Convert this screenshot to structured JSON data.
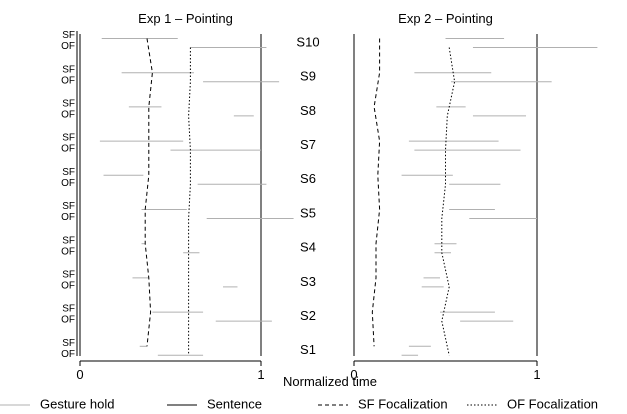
{
  "chart_data": {
    "type": "line",
    "xlabel": "Normalized time",
    "xlim": [
      0,
      1
    ],
    "xticks": [
      0,
      1
    ],
    "row_labels": [
      "SF",
      "OF"
    ],
    "subjects": [
      "S10",
      "S9",
      "S8",
      "S7",
      "S6",
      "S5",
      "S4",
      "S3",
      "S2",
      "S1"
    ],
    "legend": [
      {
        "name": "Gesture hold",
        "style": "solid",
        "color": "#b0b0b0"
      },
      {
        "name": "Sentence",
        "style": "solid",
        "color": "#000000"
      },
      {
        "name": "SF Focalization",
        "style": "dashed",
        "color": "#000000"
      },
      {
        "name": "OF Focalization",
        "style": "dotted",
        "color": "#000000"
      }
    ],
    "panels": [
      {
        "title": "Exp 1 – Pointing",
        "sentence": [
          0,
          1
        ],
        "gesture_hold": {
          "SF": [
            [
              0.12,
              0.54
            ],
            [
              0.23,
              0.63
            ],
            [
              0.27,
              0.45
            ],
            [
              0.11,
              0.57
            ],
            [
              0.13,
              0.35
            ],
            [
              0.34,
              0.59
            ],
            [
              0.34,
              0.36
            ],
            [
              0.29,
              0.38
            ],
            [
              0.4,
              0.68
            ],
            [
              0.33,
              0.37
            ]
          ],
          "OF": [
            [
              0.61,
              1.03
            ],
            [
              0.68,
              1.1
            ],
            [
              0.85,
              0.96
            ],
            [
              0.5,
              1.0
            ],
            [
              0.65,
              1.03
            ],
            [
              0.7,
              1.18
            ],
            [
              0.57,
              0.66
            ],
            [
              0.79,
              0.87
            ],
            [
              0.75,
              1.06
            ],
            [
              0.43,
              0.68
            ]
          ]
        },
        "sf_focalization": [
          0.37,
          0.4,
          0.38,
          0.38,
          0.38,
          0.36,
          0.36,
          0.38,
          0.39,
          0.37
        ],
        "of_focalization": [
          0.61,
          0.61,
          0.6,
          0.61,
          0.61,
          0.6,
          0.6,
          0.6,
          0.6,
          0.6
        ]
      },
      {
        "title": "Exp 2 – Pointing",
        "sentence": [
          0,
          1
        ],
        "gesture_hold": {
          "SF": [
            [
              0.5,
              0.82
            ],
            [
              0.33,
              0.75
            ],
            [
              0.45,
              0.61
            ],
            [
              0.3,
              0.79
            ],
            [
              0.26,
              0.54
            ],
            [
              0.52,
              0.77
            ],
            [
              0.44,
              0.56
            ],
            [
              0.38,
              0.47
            ],
            [
              0.47,
              0.77
            ],
            [
              0.3,
              0.42
            ]
          ],
          "OF": [
            [
              0.65,
              1.33
            ],
            [
              0.53,
              1.08
            ],
            [
              0.65,
              0.94
            ],
            [
              0.33,
              0.91
            ],
            [
              0.52,
              0.8
            ],
            [
              0.63,
              1.0
            ],
            [
              0.44,
              0.53
            ],
            [
              0.37,
              0.49
            ],
            [
              0.58,
              0.87
            ],
            [
              0.26,
              0.35
            ]
          ]
        },
        "sf_focalization": [
          0.14,
          0.14,
          0.11,
          0.14,
          0.13,
          0.14,
          0.12,
          0.12,
          0.1,
          0.11
        ],
        "of_focalization": [
          0.52,
          0.55,
          0.51,
          0.5,
          0.5,
          0.48,
          0.48,
          0.52,
          0.48,
          0.52
        ]
      }
    ]
  }
}
